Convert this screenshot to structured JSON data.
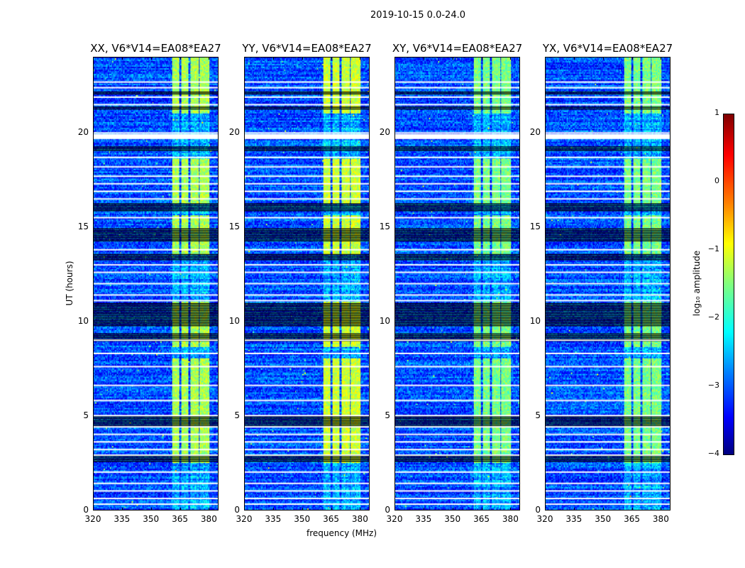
{
  "chart_data": {
    "type": "heatmap",
    "suptitle": "2019-10-15 0.0-24.0",
    "xlabel": "frequency (MHz)",
    "ylabel": "UT (hours)",
    "xlim": [
      320,
      385
    ],
    "ylim": [
      0,
      24
    ],
    "xticks": [
      "320",
      "335",
      "350",
      "365",
      "380"
    ],
    "xtick_values": [
      320,
      335,
      350,
      365,
      380
    ],
    "yticks": [
      "0",
      "5",
      "10",
      "15",
      "20"
    ],
    "ytick_values": [
      0,
      5,
      10,
      15,
      20
    ],
    "panels": [
      {
        "title": "XX, V6*V14=EA08*EA27",
        "rfi_strength": 1.0
      },
      {
        "title": "YY, V6*V14=EA08*EA27",
        "rfi_strength": 1.15
      },
      {
        "title": "XY, V6*V14=EA08*EA27",
        "rfi_strength": 0.85
      },
      {
        "title": "YX, V6*V14=EA08*EA27",
        "rfi_strength": 0.85
      }
    ],
    "background_log_amplitude": -3.0,
    "rfi_band_mhz": [
      [
        361,
        365
      ],
      [
        366,
        370
      ],
      [
        371,
        375
      ],
      [
        376,
        380.5
      ]
    ],
    "rfi_log_amplitude": -1.3,
    "rfi_active_hours": [
      [
        2.5,
        8.0
      ],
      [
        8.6,
        11.0
      ],
      [
        13.5,
        15.6
      ],
      [
        16.2,
        18.6
      ],
      [
        21.0,
        24.0
      ]
    ],
    "flagged_white_hours": [
      0.3,
      0.6,
      1.0,
      1.4,
      2.0,
      2.9,
      3.2,
      3.6,
      4.0,
      4.4,
      5.0,
      5.8,
      6.6,
      7.6,
      8.3,
      9.0,
      11.1,
      11.4,
      12.0,
      12.6,
      13.0,
      13.8,
      15.5,
      16.5,
      16.9,
      17.3,
      17.7,
      18.2,
      18.7,
      19.9,
      20.0,
      21.5,
      21.9,
      22.4,
      22.7
    ],
    "flagged_black_hours": [
      [
        2.6,
        2.9
      ],
      [
        4.5,
        5.0
      ],
      [
        9.0,
        9.4
      ],
      [
        9.8,
        11.0
      ],
      [
        13.3,
        13.6
      ],
      [
        14.3,
        15.0
      ],
      [
        15.9,
        16.3
      ],
      [
        19.1,
        19.3
      ],
      [
        21.3,
        21.4
      ],
      [
        22.1,
        22.2
      ]
    ],
    "colorbar": {
      "label": "log₁₀ amplitude",
      "range": [
        -4,
        1
      ],
      "ticks": [
        "1",
        "0",
        "−1",
        "−2",
        "−3",
        "−4"
      ],
      "tick_values": [
        1,
        0,
        -1,
        -2,
        -3,
        -4
      ],
      "colormap": "jet"
    }
  }
}
